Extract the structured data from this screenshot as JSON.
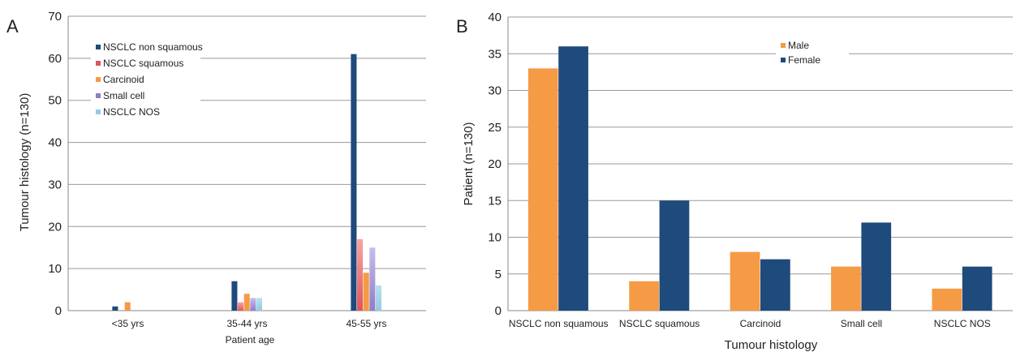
{
  "colors": {
    "dark_blue": "#1f4a7c",
    "red": "#e0555a",
    "red_light": "#f7a5a3",
    "orange": "#f59a45",
    "purple": "#8f7ec4",
    "purple_light": "#c8bdee",
    "light_blue": "#93cbe2",
    "light_blue_light": "#b8e0ee"
  },
  "chart_data": [
    {
      "panel_label": "A",
      "type": "bar",
      "title": "",
      "xlabel": "Patient age",
      "ylabel": "Tumour histology (n=130)",
      "ylim": [
        0,
        70
      ],
      "yticks": [
        0,
        10,
        20,
        30,
        40,
        50,
        60,
        70
      ],
      "grid": true,
      "legend": "top-left",
      "categories": [
        "<35 yrs",
        "35-44 yrs",
        "45-55 yrs"
      ],
      "series": [
        {
          "name": "NSCLC non squamous",
          "color": "dark_blue",
          "values": [
            1,
            7,
            61
          ]
        },
        {
          "name": "NSCLC squamous",
          "color": "red",
          "values": [
            0,
            2,
            17
          ]
        },
        {
          "name": "Carcinoid",
          "color": "orange",
          "values": [
            2,
            4,
            9
          ]
        },
        {
          "name": "Small cell",
          "color": "purple",
          "values": [
            0,
            3,
            15
          ]
        },
        {
          "name": "NSCLC NOS",
          "color": "light_blue",
          "values": [
            0,
            3,
            6
          ]
        }
      ]
    },
    {
      "panel_label": "B",
      "type": "bar",
      "title": "",
      "xlabel": "Tumour histology",
      "ylabel": "Patient (n=130)",
      "ylim": [
        0,
        40
      ],
      "yticks": [
        0,
        5,
        10,
        15,
        20,
        25,
        30,
        35,
        40
      ],
      "grid": true,
      "legend": "top-center",
      "categories": [
        "NSCLC non squamous",
        "NSCLC squamous",
        "Carcinoid",
        "Small cell",
        "NSCLC NOS"
      ],
      "series": [
        {
          "name": "Male",
          "color": "orange",
          "values": [
            33,
            4,
            8,
            6,
            3
          ]
        },
        {
          "name": "Female",
          "color": "dark_blue",
          "values": [
            36,
            15,
            7,
            12,
            6
          ]
        }
      ]
    }
  ]
}
